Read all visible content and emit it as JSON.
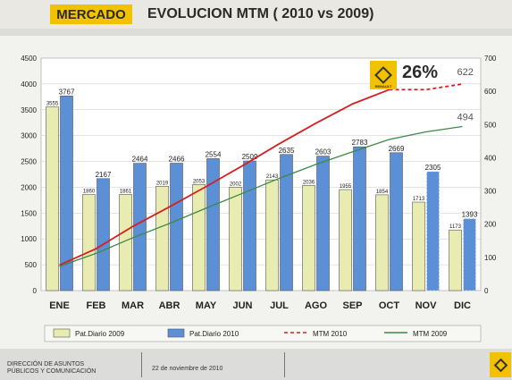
{
  "header": {
    "section": "MERCADO",
    "title": "EVOLUCION MTM ( 2010 vs 2009)"
  },
  "badge": {
    "percent": "26%",
    "logo_text": "RENAULT"
  },
  "footer": {
    "org": "DIRECCIÓN DE ASUNTOS\nPÚBLICOS Y COMUNICACIÓN",
    "date": "22 de noviembre de 2010"
  },
  "chart_data": {
    "type": "bar",
    "categories": [
      "ENE",
      "FEB",
      "MAR",
      "ABR",
      "MAY",
      "JUN",
      "JUL",
      "AGO",
      "SEP",
      "OCT",
      "NOV",
      "DIC"
    ],
    "series": [
      {
        "name": "Pat.Diario 2009",
        "axis": "left",
        "color": "#e9ecb0",
        "values": [
          3555,
          1860,
          1861,
          2019,
          2053,
          2002,
          2143,
          2036,
          1955,
          1854,
          1713,
          1173
        ],
        "labels": [
          "3555",
          "1860",
          "1861",
          "2019",
          "2053",
          "2002",
          "2143",
          "2036",
          "1955",
          "1854",
          "1713",
          "1173"
        ]
      },
      {
        "name": "Pat.Diario 2010",
        "axis": "left",
        "color": "#5b8fd6",
        "values": [
          3767,
          2167,
          2464,
          2466,
          2554,
          2509,
          2635,
          2603,
          2783,
          2669,
          2305,
          1393
        ],
        "labels": [
          "3767",
          "2167",
          "2464",
          "2466",
          "2554",
          "2509",
          "2635",
          "2603",
          "2783",
          "2669",
          "2305",
          "1393"
        ]
      },
      {
        "name": "MTM 2010",
        "axis": "right",
        "type": "line",
        "color": "#d42020",
        "values": [
          77,
          126,
          193,
          252,
          313,
          376,
          442,
          504,
          562,
          605,
          605,
          622
        ],
        "end_label": "622"
      },
      {
        "name": "MTM 2009",
        "axis": "right",
        "type": "line",
        "color": "#3a8a46",
        "values": [
          73,
          112,
          159,
          202,
          248,
          293,
          338,
          380,
          418,
          455,
          478,
          494
        ],
        "end_label": "494"
      }
    ],
    "forecast_categories": [
      "NOV",
      "DIC"
    ],
    "yticks_left": [
      "0",
      "500",
      "1000",
      "1500",
      "2000",
      "2500",
      "3000",
      "3500",
      "4000",
      "4500"
    ],
    "yticks_right": [
      "0",
      "100",
      "200",
      "300",
      "400",
      "500",
      "600",
      "700"
    ],
    "ylim_left": [
      0,
      4500
    ],
    "ylim_right": [
      0,
      700
    ],
    "grid": true,
    "legend": "bottom"
  }
}
